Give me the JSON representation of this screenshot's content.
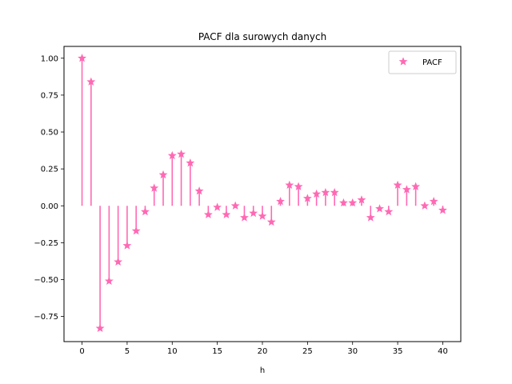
{
  "chart_data": {
    "type": "stem",
    "title": "PACF dla surowych danych",
    "xlabel": "h",
    "ylabel": "",
    "xlim": [
      -2,
      42
    ],
    "ylim": [
      -0.92,
      1.08
    ],
    "xticks": [
      0,
      5,
      10,
      15,
      20,
      25,
      30,
      35,
      40
    ],
    "xtick_labels": [
      "0",
      "5",
      "10",
      "15",
      "20",
      "25",
      "30",
      "35",
      "40"
    ],
    "yticks": [
      1.0,
      0.75,
      0.5,
      0.25,
      0.0,
      -0.25,
      -0.5,
      -0.75
    ],
    "ytick_labels": [
      "1.00",
      "0.75",
      "0.50",
      "0.25",
      "0.00",
      "−0.25",
      "−0.50",
      "−0.75"
    ],
    "grid": false,
    "legend_position": "top-right",
    "series": [
      {
        "name": "PACF",
        "marker": "star",
        "color": "#ff69b4",
        "x": [
          0,
          1,
          2,
          3,
          4,
          5,
          6,
          7,
          8,
          9,
          10,
          11,
          12,
          13,
          14,
          15,
          16,
          17,
          18,
          19,
          20,
          21,
          22,
          23,
          24,
          25,
          26,
          27,
          28,
          29,
          30,
          31,
          32,
          33,
          34,
          35,
          36,
          37,
          38,
          39,
          40
        ],
        "values": [
          1.0,
          0.84,
          -0.83,
          -0.51,
          -0.38,
          -0.27,
          -0.17,
          -0.04,
          0.12,
          0.21,
          0.34,
          0.35,
          0.29,
          0.1,
          -0.06,
          -0.01,
          -0.06,
          0.0,
          -0.08,
          -0.05,
          -0.07,
          -0.11,
          0.03,
          0.14,
          0.13,
          0.05,
          0.08,
          0.09,
          0.09,
          0.02,
          0.02,
          0.04,
          -0.08,
          -0.02,
          -0.04,
          0.14,
          0.11,
          0.13,
          0.0,
          0.03,
          -0.03
        ]
      }
    ]
  }
}
